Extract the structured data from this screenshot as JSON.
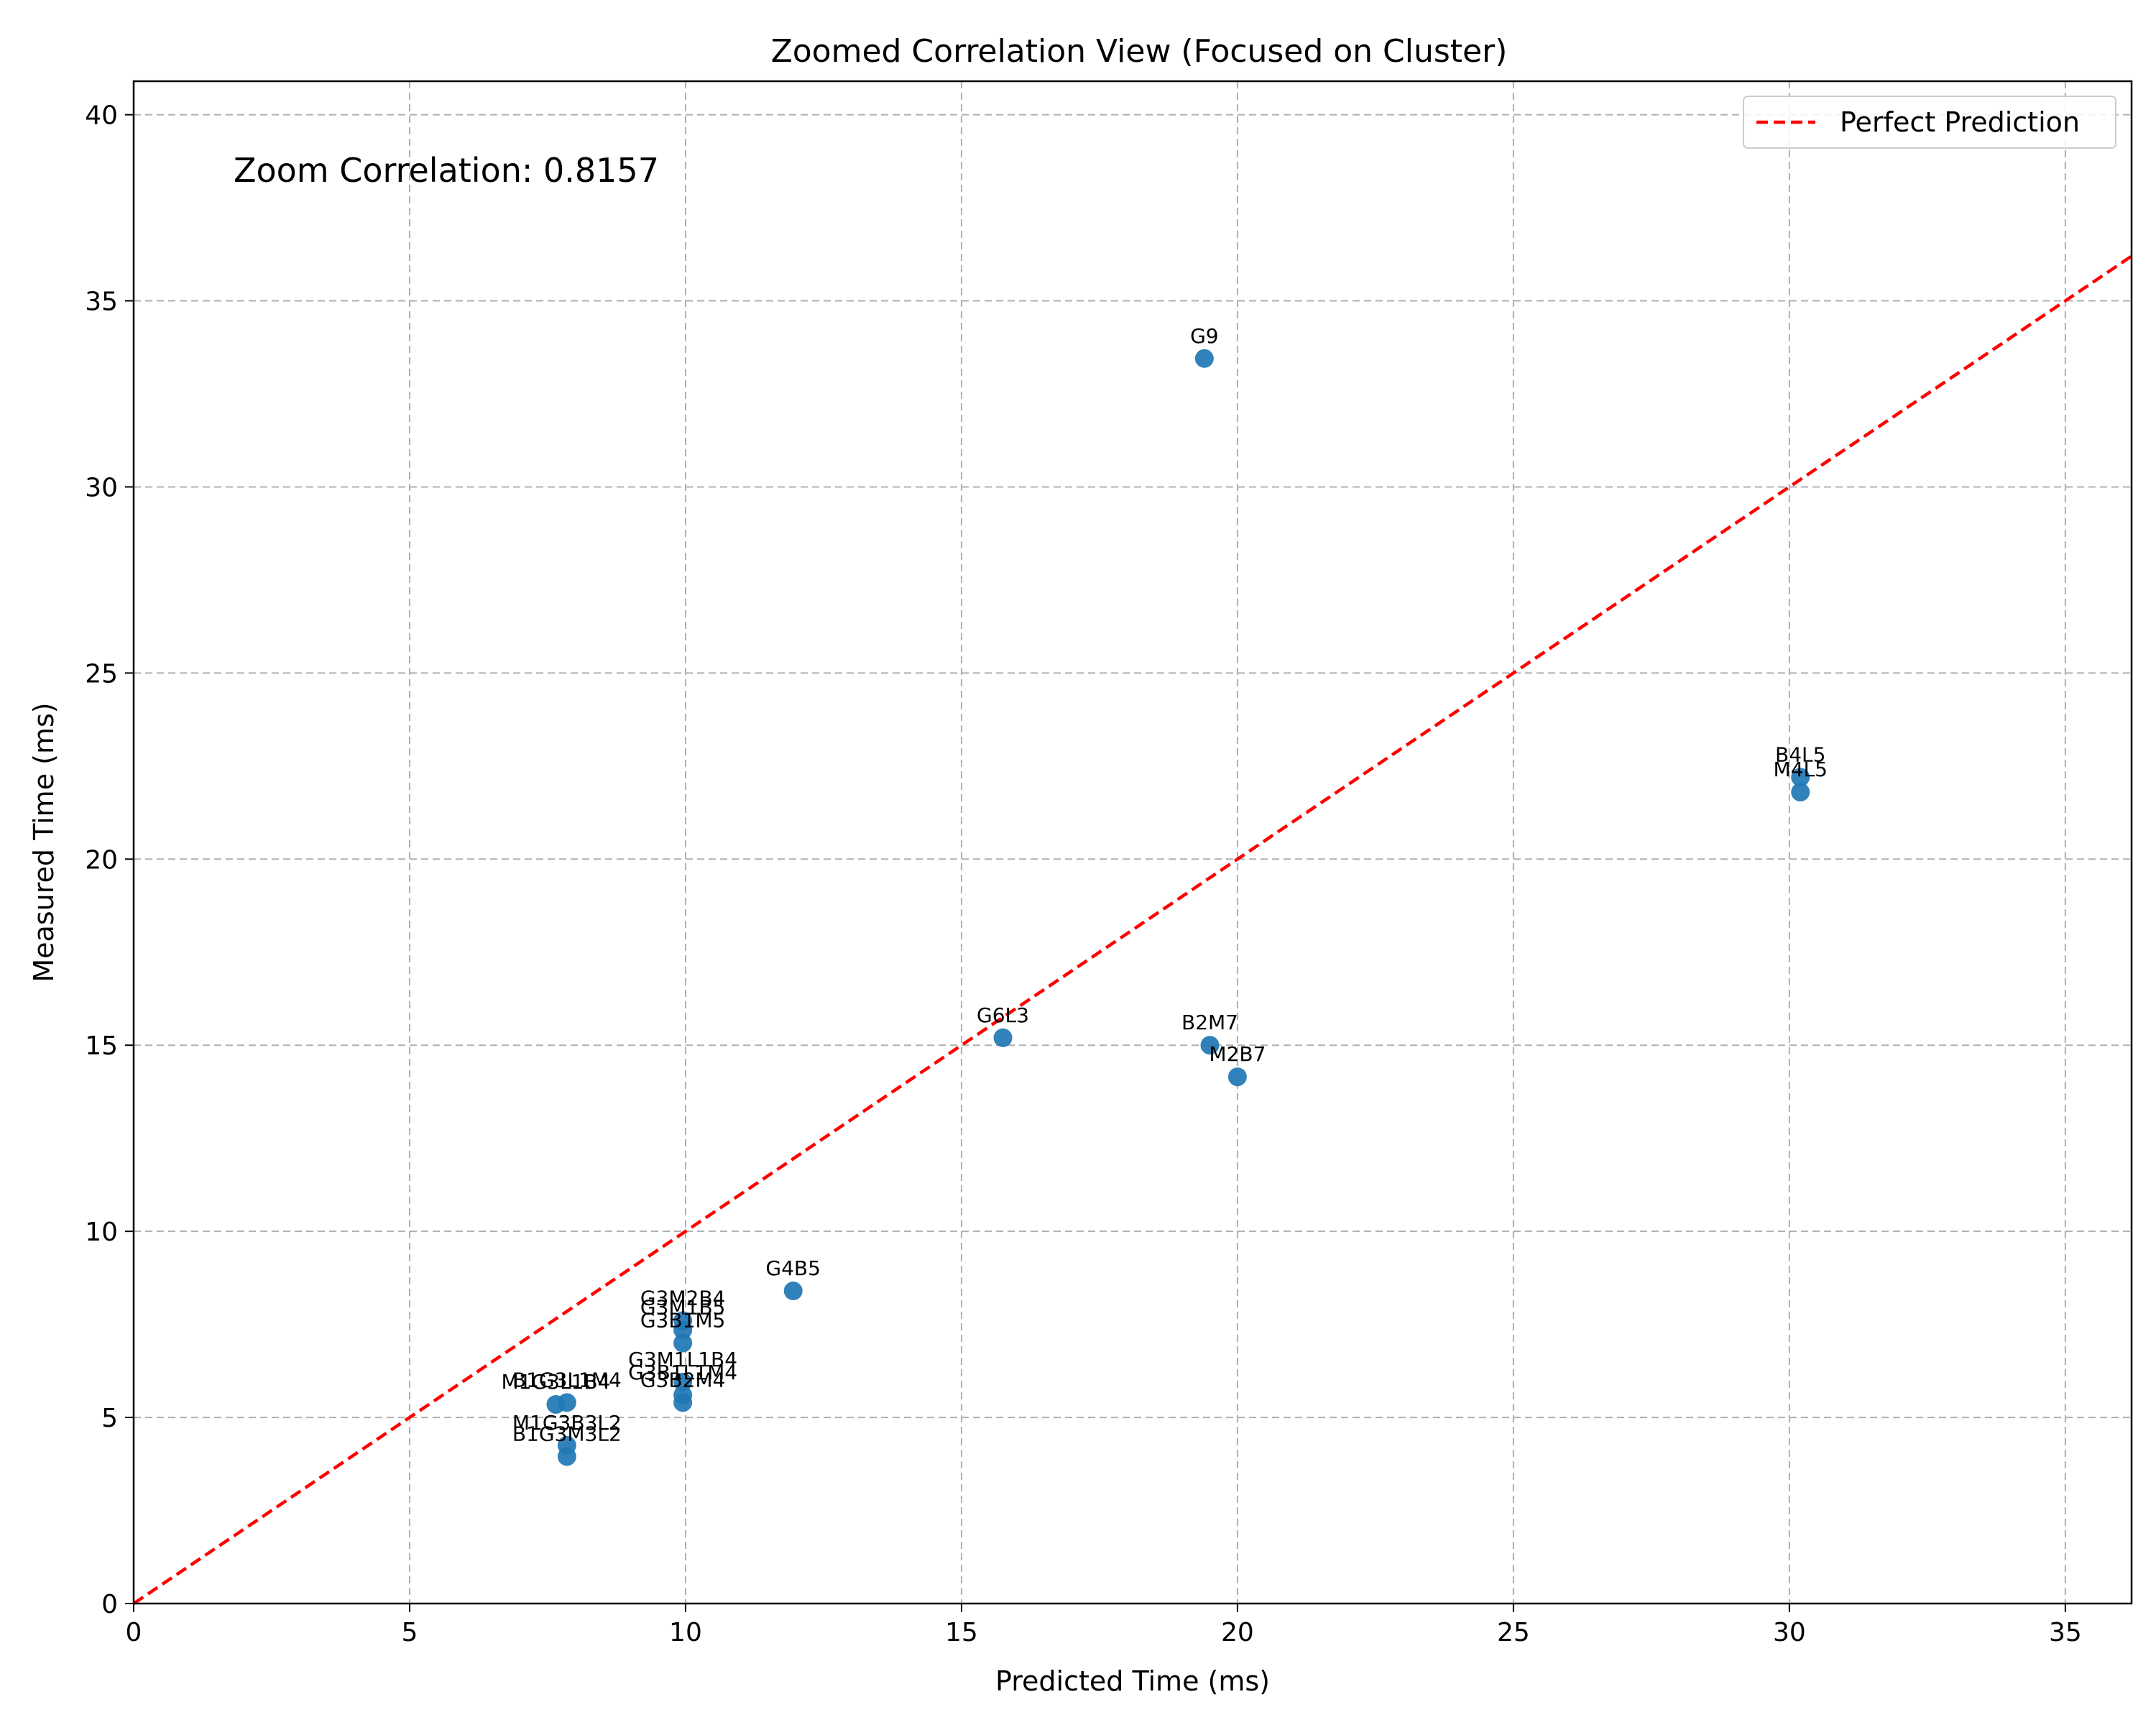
{
  "chart_data": {
    "type": "scatter",
    "title": "Zoomed Correlation View (Focused on Cluster)",
    "xlabel": "Predicted Time (ms)",
    "ylabel": "Measured Time (ms)",
    "xlim": [
      0,
      36.2
    ],
    "ylim": [
      0,
      40.9
    ],
    "xticks": [
      0,
      5,
      10,
      15,
      20,
      25,
      30,
      35
    ],
    "yticks": [
      0,
      5,
      10,
      15,
      20,
      25,
      30,
      35,
      40
    ],
    "grid": true,
    "legend": {
      "position": "top-right",
      "entries": [
        {
          "label": "Perfect Prediction",
          "color": "#ff0000",
          "style": "dashed"
        }
      ]
    },
    "annotation": "Zoom Correlation: 0.8157",
    "reference_line": {
      "label": "Perfect Prediction",
      "x": [
        0,
        36.2
      ],
      "y": [
        0,
        36.2
      ]
    },
    "points": [
      {
        "label": "G9",
        "x": 19.4,
        "y": 33.45
      },
      {
        "label": "B4L5",
        "x": 30.2,
        "y": 22.2
      },
      {
        "label": "M4L5",
        "x": 30.2,
        "y": 21.8
      },
      {
        "label": "G6L3",
        "x": 15.75,
        "y": 15.2
      },
      {
        "label": "B2M7",
        "x": 19.5,
        "y": 15.0
      },
      {
        "label": "M2B7",
        "x": 20.0,
        "y": 14.15
      },
      {
        "label": "G4B5",
        "x": 11.95,
        "y": 8.4
      },
      {
        "label": "G3M2B4",
        "x": 9.95,
        "y": 7.6
      },
      {
        "label": "G3M1B5",
        "x": 9.95,
        "y": 7.35
      },
      {
        "label": "G3B1M5",
        "x": 9.95,
        "y": 7.0
      },
      {
        "label": "G3M1L1B4",
        "x": 9.95,
        "y": 5.95
      },
      {
        "label": "G3B1L1M4",
        "x": 9.95,
        "y": 5.6
      },
      {
        "label": "G3B2M4",
        "x": 9.95,
        "y": 5.4
      },
      {
        "label": "M1G3L1B4",
        "x": 7.65,
        "y": 5.35
      },
      {
        "label": "B1G3L1M4",
        "x": 7.85,
        "y": 5.4
      },
      {
        "label": "M1G3B3L2",
        "x": 7.85,
        "y": 4.25
      },
      {
        "label": "B1G3M3L2",
        "x": 7.85,
        "y": 3.95
      }
    ],
    "colors": {
      "points": "#1f77b4",
      "reference_line": "#ff0000",
      "grid": "#b0b0b0"
    }
  }
}
